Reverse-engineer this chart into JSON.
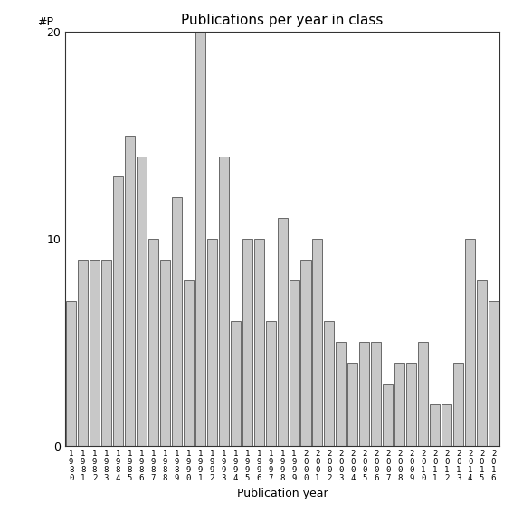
{
  "title": "Publications per year in class",
  "xlabel": "Publication year",
  "ylabel": "#P",
  "years": [
    "1980",
    "1981",
    "1982",
    "1983",
    "1984",
    "1985",
    "1986",
    "1987",
    "1988",
    "1989",
    "1990",
    "1991",
    "1992",
    "1993",
    "1994",
    "1995",
    "1996",
    "1997",
    "1998",
    "1999",
    "2000",
    "2001",
    "2002",
    "2003",
    "2004",
    "2005",
    "2006",
    "2007",
    "2008",
    "2009",
    "2010",
    "2011",
    "2012",
    "2013",
    "2014",
    "2015",
    "2016"
  ],
  "values": [
    7,
    9,
    9,
    9,
    13,
    15,
    14,
    10,
    9,
    12,
    8,
    20,
    10,
    14,
    6,
    10,
    10,
    6,
    11,
    8,
    9,
    10,
    6,
    5,
    4,
    5,
    5,
    3,
    4,
    4,
    5,
    2,
    2,
    4,
    10,
    8,
    7
  ],
  "bar_color": "#c8c8c8",
  "bar_edge_color": "#555555",
  "ylim": [
    0,
    20
  ],
  "yticks": [
    0,
    10,
    20
  ],
  "background_color": "#ffffff",
  "title_fontsize": 11,
  "label_fontsize": 9,
  "tick_fontsize": 6.5
}
